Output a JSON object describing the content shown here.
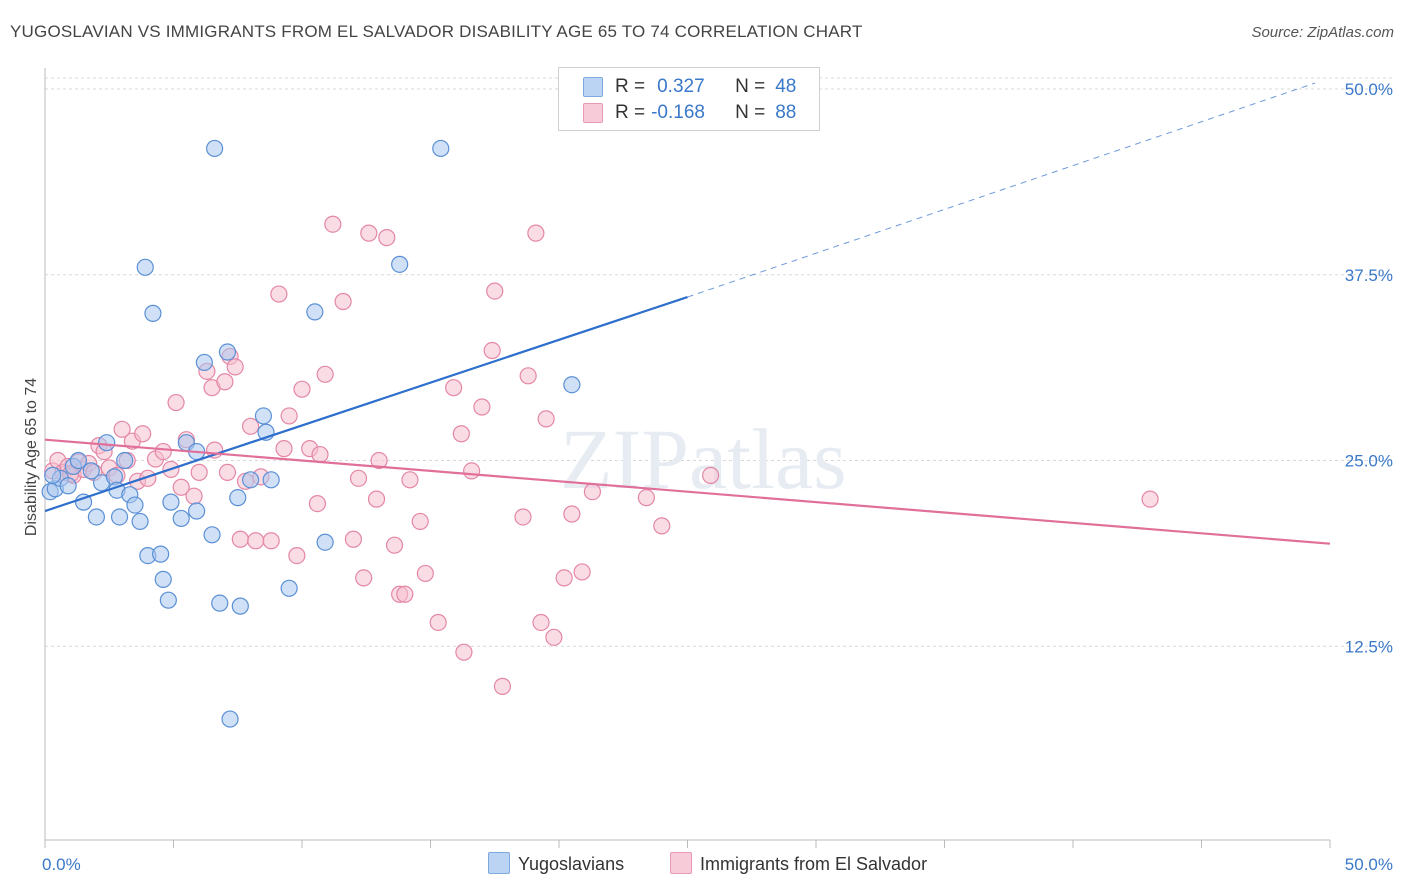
{
  "title": "YUGOSLAVIAN VS IMMIGRANTS FROM EL SALVADOR DISABILITY AGE 65 TO 74 CORRELATION CHART",
  "source": "Source: ZipAtlas.com",
  "watermark": "ZIPatlas",
  "colors": {
    "blue_fill": "#a9c7ee",
    "blue_stroke": "#5a90d6",
    "blue_line": "#2f6fcc",
    "pink_fill": "#f6bfd0",
    "pink_stroke": "#e487a6",
    "pink_line": "#e07099",
    "tick_label": "#3a78c9",
    "grid": "#d8d8d8"
  },
  "legend": {
    "r_label": "R =",
    "n_label": "N =",
    "blue": {
      "r": "0.327",
      "n": "48"
    },
    "pink": {
      "r": "-0.168",
      "n": "88"
    }
  },
  "bottom_legend": {
    "blue": "Yugoslavians",
    "pink": "Immigrants from El Salvador"
  },
  "chart_data": {
    "type": "scatter",
    "ylabel": "Disability Age 65 to 74",
    "xlim": [
      0,
      50
    ],
    "ylim": [
      0,
      50
    ],
    "x_tick_labels": [
      "0.0%",
      "50.0%"
    ],
    "y_ticks": [
      12.5,
      25.0,
      37.5,
      50.0
    ],
    "y_tick_labels": [
      "12.5%",
      "25.0%",
      "37.5%",
      "50.0%"
    ],
    "grid": true,
    "legend_position": "top-center",
    "series": [
      {
        "name": "Yugoslavians",
        "r": 0.327,
        "n": 48,
        "trend": {
          "x0": 0,
          "y0": 21.6,
          "x1": 25,
          "y1": 36.0,
          "dashed_to_x": 50,
          "dashed_to_y": 50.4
        },
        "points": [
          [
            0.2,
            22.9
          ],
          [
            0.4,
            23.1
          ],
          [
            0.6,
            23.8
          ],
          [
            0.9,
            23.3
          ],
          [
            1.1,
            24.6
          ],
          [
            1.3,
            25.0
          ],
          [
            1.5,
            22.2
          ],
          [
            1.8,
            24.3
          ],
          [
            2.0,
            21.2
          ],
          [
            2.2,
            23.5
          ],
          [
            2.4,
            26.2
          ],
          [
            2.7,
            23.9
          ],
          [
            2.8,
            23.0
          ],
          [
            2.9,
            21.2
          ],
          [
            3.1,
            25.0
          ],
          [
            3.3,
            22.7
          ],
          [
            3.5,
            22.0
          ],
          [
            3.7,
            20.9
          ],
          [
            3.9,
            38.0
          ],
          [
            4.0,
            18.6
          ],
          [
            4.2,
            34.9
          ],
          [
            4.5,
            18.7
          ],
          [
            4.6,
            17.0
          ],
          [
            4.8,
            15.6
          ],
          [
            4.9,
            22.2
          ],
          [
            5.3,
            21.1
          ],
          [
            5.5,
            26.2
          ],
          [
            5.9,
            21.6
          ],
          [
            5.9,
            25.6
          ],
          [
            6.2,
            31.6
          ],
          [
            6.5,
            20.0
          ],
          [
            6.6,
            46.0
          ],
          [
            6.8,
            15.4
          ],
          [
            7.1,
            32.3
          ],
          [
            7.2,
            7.6
          ],
          [
            7.5,
            22.5
          ],
          [
            7.6,
            15.2
          ],
          [
            8.0,
            23.7
          ],
          [
            8.5,
            28.0
          ],
          [
            8.6,
            26.9
          ],
          [
            8.8,
            23.7
          ],
          [
            9.5,
            16.4
          ],
          [
            10.5,
            35.0
          ],
          [
            10.9,
            19.5
          ],
          [
            13.8,
            38.2
          ],
          [
            15.4,
            46.0
          ],
          [
            20.5,
            30.1
          ],
          [
            0.3,
            24.0
          ]
        ]
      },
      {
        "name": "Immigrants from El Salvador",
        "r": -0.168,
        "n": 88,
        "trend": {
          "x0": 0,
          "y0": 26.4,
          "x1": 50,
          "y1": 19.4
        },
        "points": [
          [
            0.3,
            24.3
          ],
          [
            0.5,
            25.0
          ],
          [
            0.7,
            24.2
          ],
          [
            0.9,
            24.6
          ],
          [
            1.1,
            24.0
          ],
          [
            1.3,
            24.9
          ],
          [
            1.5,
            24.4
          ],
          [
            1.7,
            24.8
          ],
          [
            1.9,
            24.2
          ],
          [
            2.1,
            26.0
          ],
          [
            2.3,
            25.6
          ],
          [
            2.5,
            24.5
          ],
          [
            2.8,
            24.0
          ],
          [
            3.0,
            27.1
          ],
          [
            3.2,
            25.0
          ],
          [
            3.4,
            26.3
          ],
          [
            3.6,
            23.6
          ],
          [
            3.8,
            26.8
          ],
          [
            4.0,
            23.8
          ],
          [
            4.3,
            25.1
          ],
          [
            4.6,
            25.6
          ],
          [
            4.9,
            24.4
          ],
          [
            5.1,
            28.9
          ],
          [
            5.3,
            23.2
          ],
          [
            5.5,
            26.4
          ],
          [
            5.8,
            22.6
          ],
          [
            6.0,
            24.2
          ],
          [
            6.3,
            31.0
          ],
          [
            6.5,
            29.9
          ],
          [
            6.6,
            25.7
          ],
          [
            7.0,
            30.3
          ],
          [
            7.1,
            24.2
          ],
          [
            7.2,
            32.0
          ],
          [
            7.4,
            31.3
          ],
          [
            7.6,
            19.7
          ],
          [
            7.8,
            23.6
          ],
          [
            8.0,
            27.3
          ],
          [
            8.2,
            19.6
          ],
          [
            8.4,
            23.9
          ],
          [
            8.8,
            19.6
          ],
          [
            9.1,
            36.2
          ],
          [
            9.3,
            25.8
          ],
          [
            9.5,
            28.0
          ],
          [
            9.8,
            18.6
          ],
          [
            10.0,
            29.8
          ],
          [
            10.3,
            25.8
          ],
          [
            10.6,
            22.1
          ],
          [
            10.7,
            25.4
          ],
          [
            10.9,
            30.8
          ],
          [
            11.2,
            40.9
          ],
          [
            11.6,
            35.7
          ],
          [
            12.0,
            19.7
          ],
          [
            12.2,
            23.8
          ],
          [
            12.4,
            17.1
          ],
          [
            12.6,
            40.3
          ],
          [
            12.9,
            22.4
          ],
          [
            13.0,
            25.0
          ],
          [
            13.3,
            40.0
          ],
          [
            13.6,
            19.3
          ],
          [
            13.8,
            16.0
          ],
          [
            14.0,
            16.0
          ],
          [
            14.2,
            23.7
          ],
          [
            14.6,
            20.9
          ],
          [
            14.8,
            17.4
          ],
          [
            15.3,
            14.1
          ],
          [
            15.9,
            29.9
          ],
          [
            16.2,
            26.8
          ],
          [
            16.3,
            12.1
          ],
          [
            16.6,
            24.3
          ],
          [
            17.0,
            28.6
          ],
          [
            17.4,
            32.4
          ],
          [
            17.5,
            36.4
          ],
          [
            17.8,
            9.8
          ],
          [
            18.6,
            21.2
          ],
          [
            18.8,
            30.7
          ],
          [
            19.1,
            40.3
          ],
          [
            19.3,
            14.1
          ],
          [
            19.5,
            27.8
          ],
          [
            19.8,
            13.1
          ],
          [
            20.2,
            17.1
          ],
          [
            20.5,
            21.4
          ],
          [
            20.9,
            17.5
          ],
          [
            21.3,
            22.9
          ],
          [
            23.4,
            22.5
          ],
          [
            24.0,
            20.6
          ],
          [
            25.9,
            24.0
          ],
          [
            43.0,
            22.4
          ],
          [
            1.0,
            24.1
          ]
        ]
      }
    ]
  }
}
